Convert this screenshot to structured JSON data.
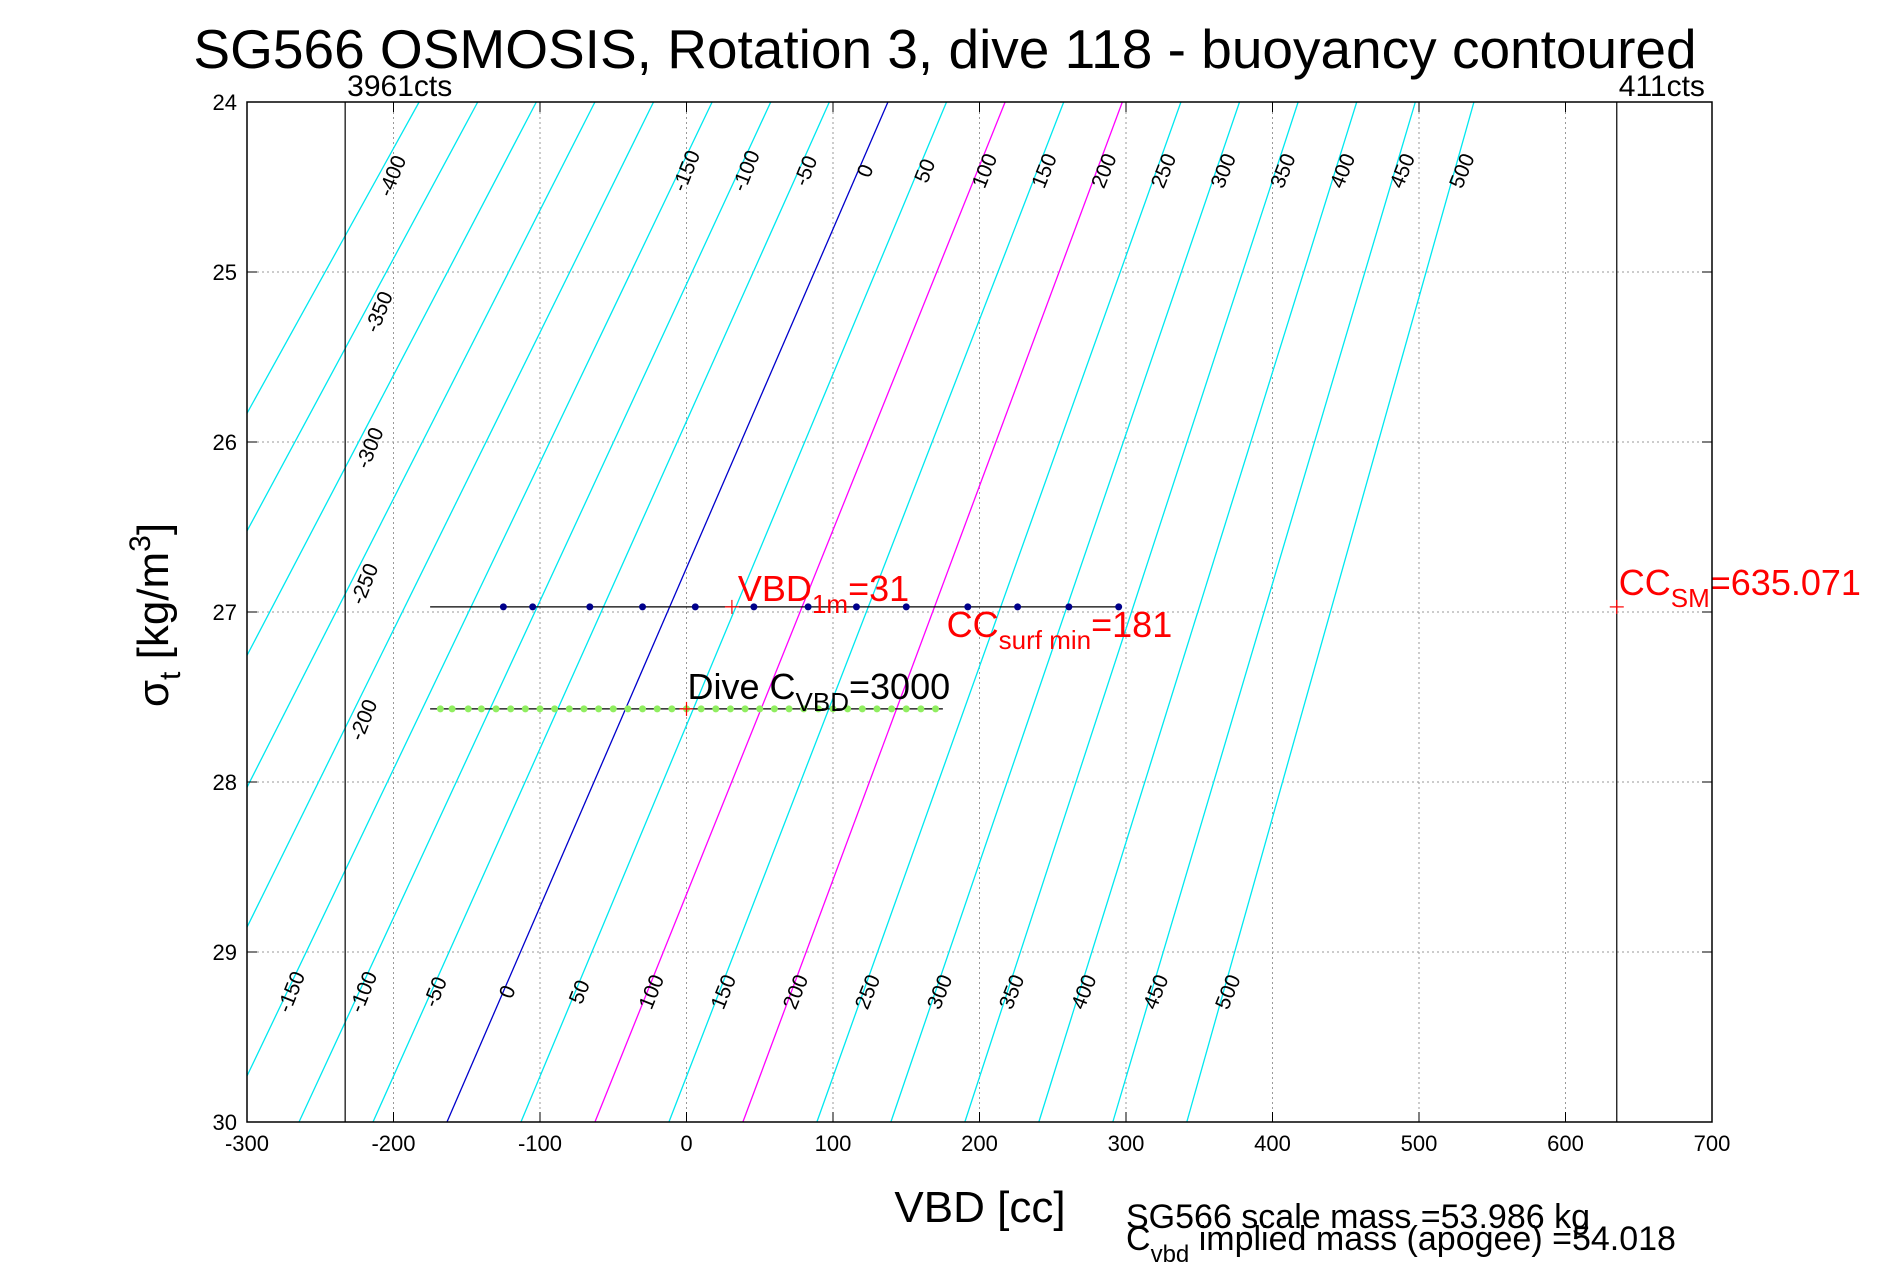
{
  "chart_data": {
    "type": "line",
    "title": "SG566 OSMOSIS, Rotation 3, dive 118 - buoyancy contoured",
    "xlabel": "VBD [cc]",
    "ylabel": {
      "symbol": "σ",
      "sub": "t",
      "unit": " [kg/m",
      "sup": "3",
      "close": "]"
    },
    "xlim": [
      -300,
      700
    ],
    "ylim": [
      24,
      30
    ],
    "y_reversed": true,
    "grid": true,
    "xticks": [
      -300,
      -200,
      -100,
      0,
      100,
      200,
      300,
      400,
      500,
      600,
      700
    ],
    "yticks": [
      24,
      25,
      26,
      27,
      28,
      29,
      30
    ],
    "buoyancy_contours": {
      "cyan": [
        -400,
        -350,
        -300,
        -250,
        -200,
        -150,
        -100,
        -50,
        50,
        150,
        250,
        300,
        350,
        400,
        450,
        500
      ],
      "magenta": [
        100,
        200
      ],
      "blue": [
        0
      ],
      "top_labels": [
        "-400",
        "-350",
        "-300",
        "-250",
        "-200",
        "-150",
        "-100",
        "-50",
        "0",
        "50",
        "100",
        "150",
        "200",
        "250",
        "300",
        "350",
        "400",
        "450",
        "500"
      ],
      "bottom_labels": [
        "-150",
        "-100",
        "-50",
        "0",
        "50",
        "100",
        "150",
        "200",
        "250",
        "300",
        "350",
        "400",
        "450",
        "500"
      ]
    },
    "vertical_lines": [
      {
        "x": -233,
        "label": "3961cts"
      },
      {
        "x": 635,
        "label": "411cts"
      }
    ],
    "dive_trace": {
      "upper": {
        "sigma": 26.97,
        "x_from": -175,
        "x_to": 296,
        "dots": [
          -125,
          -105,
          -66,
          -30,
          6,
          46,
          83,
          116,
          150,
          192,
          226,
          261,
          295
        ]
      },
      "left_side": {
        "x": -175,
        "sigma_from": 26.97,
        "sigma_to": 27.57
      },
      "lower": {
        "sigma": 27.57,
        "x_from": -175,
        "x_to": 175,
        "dots": [
          -168,
          -160,
          -149,
          -140,
          -130,
          -120,
          -110,
          -100,
          -90,
          -80,
          -70,
          -60,
          -50,
          -40,
          -30,
          -20,
          -10,
          0,
          10,
          20,
          30,
          40,
          50,
          60,
          70,
          80,
          90,
          100,
          110,
          120,
          130,
          140,
          150,
          160,
          170
        ]
      },
      "right_side": {
        "x": 181,
        "sigma_from": 27.57,
        "sigma_to": 26.97
      }
    },
    "annotations": {
      "vbd_1m": {
        "text": "VBD",
        "sub": "1m",
        "value": "=31",
        "x": 31,
        "sigma": 26.97
      },
      "cc_surf_min": {
        "text": "CC",
        "sub": "surf min",
        "value": "=181",
        "x": 181
      },
      "dive_c_vbd": {
        "text": "Dive C",
        "sub": "VBD",
        "value": "=3000",
        "x": 0,
        "sigma": 27.57
      },
      "cc_sm": {
        "text": "CC",
        "sub": "SM",
        "value": "=635.071",
        "x": 635,
        "sigma": 26.97
      }
    },
    "footer": {
      "scale_mass": "SG566 scale mass =53.986 kg",
      "implied_prefix": "C",
      "implied_sub": "vbd",
      "implied_rest": " implied mass (apogee) =54.018"
    }
  }
}
